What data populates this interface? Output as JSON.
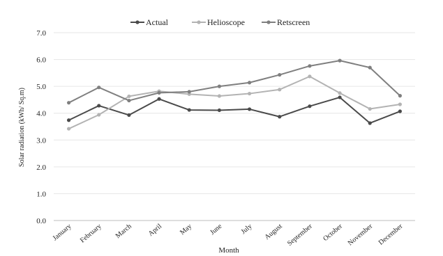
{
  "chart_data": {
    "type": "line",
    "title": "",
    "xlabel": "Month",
    "ylabel": "Solar radiation (kWh/ Sq.m)",
    "ylim": [
      0,
      7
    ],
    "yticks": [
      "0.0",
      "1.0",
      "2.0",
      "3.0",
      "4.0",
      "5.0",
      "6.0",
      "7.0"
    ],
    "grid": true,
    "legend_position": "top-center",
    "categories": [
      "January",
      "February",
      "March",
      "April",
      "May",
      "June",
      "July",
      "August",
      "September",
      "October",
      "November",
      "December"
    ],
    "series": [
      {
        "name": "Actual",
        "color": "#4a4a4a",
        "values": [
          3.74,
          4.28,
          3.93,
          4.53,
          4.12,
          4.11,
          4.15,
          3.87,
          4.26,
          4.59,
          3.63,
          4.07
        ]
      },
      {
        "name": "Helioscope",
        "color": "#b3b3b3",
        "values": [
          3.42,
          3.94,
          4.63,
          4.82,
          4.71,
          4.64,
          4.73,
          4.88,
          5.37,
          4.75,
          4.16,
          4.33
        ]
      },
      {
        "name": "Retscreen",
        "color": "#7f7f7f",
        "values": [
          4.39,
          4.96,
          4.47,
          4.76,
          4.8,
          5.0,
          5.14,
          5.43,
          5.76,
          5.96,
          5.7,
          4.65
        ]
      }
    ]
  }
}
